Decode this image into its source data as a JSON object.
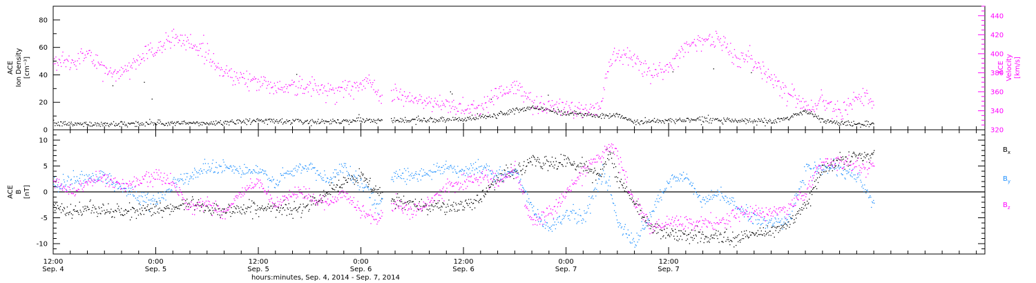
{
  "chart_data": [
    {
      "type": "scatter",
      "panel": "plasma",
      "ylabel_left_lines": [
        "ACE",
        "Ion Density",
        "[cm⁻³]"
      ],
      "ylabel_right_lines": [
        "ACE",
        "Velocity",
        "[km/s]"
      ],
      "y_left": {
        "lim": [
          0,
          90
        ],
        "ticks": [
          0,
          20,
          40,
          60,
          80
        ]
      },
      "y_right": {
        "lim": [
          320,
          450
        ],
        "ticks": [
          320,
          340,
          360,
          380,
          400,
          420,
          440
        ]
      },
      "data_gap_hours": [
        38.5,
        39.5
      ],
      "series": [
        {
          "axis": "left",
          "color": "#000000",
          "x_hours": [
            0,
            6,
            12,
            18,
            21,
            24,
            30,
            36,
            38,
            40,
            48,
            52,
            56,
            60,
            62,
            64,
            66,
            68,
            72,
            76,
            80,
            84,
            86,
            88,
            90,
            92,
            94,
            96
          ],
          "values": [
            4.5,
            4.5,
            5,
            5,
            6,
            7,
            6,
            7,
            8,
            7,
            8,
            11,
            17,
            12,
            12,
            10,
            11,
            6,
            7,
            8,
            7,
            6,
            9,
            14,
            7,
            5,
            4.5,
            4
          ]
        },
        {
          "axis": "right",
          "color": "#ff00ff",
          "x_hours": [
            0,
            2,
            4,
            6,
            8,
            10,
            11,
            12,
            14,
            16,
            18,
            19,
            20,
            22,
            24,
            26,
            28,
            30,
            32,
            34,
            36,
            37,
            38,
            40,
            42,
            44,
            46,
            48,
            50,
            52,
            54,
            56,
            58,
            60,
            62,
            64,
            65,
            66,
            68,
            70,
            72,
            74,
            76,
            78,
            80,
            82,
            84,
            86,
            88,
            90,
            92,
            94,
            96
          ],
          "values": [
            390,
            392,
            400,
            382,
            380,
            395,
            405,
            400,
            420,
            412,
            400,
            388,
            382,
            375,
            370,
            366,
            366,
            365,
            362,
            364,
            365,
            372,
            360,
            358,
            352,
            348,
            346,
            344,
            344,
            360,
            365,
            350,
            345,
            344,
            340,
            345,
            395,
            400,
            398,
            378,
            385,
            410,
            415,
            414,
            396,
            392,
            375,
            360,
            345,
            350,
            342,
            355,
            350
          ]
        }
      ]
    },
    {
      "type": "scatter",
      "panel": "magnetic-field",
      "ylabel_left_lines": [
        "ACE",
        "B",
        "[nT]"
      ],
      "ylim": [
        -12,
        12
      ],
      "yticks": [
        -10,
        -5,
        0,
        5,
        10
      ],
      "data_gap_hours": [
        38.5,
        39.5
      ],
      "legend": [
        {
          "main": "B",
          "sub": "x",
          "color": "#000000"
        },
        {
          "main": "B",
          "sub": "y",
          "color": "#1e90ff"
        },
        {
          "main": "B",
          "sub": "z",
          "color": "#ff00ff"
        }
      ],
      "series": [
        {
          "name": "Bx",
          "color": "#000000",
          "x_hours": [
            0,
            2,
            4,
            6,
            8,
            12,
            14,
            16,
            18,
            20,
            24,
            28,
            30,
            32,
            34,
            36,
            38,
            40,
            44,
            48,
            50,
            52,
            54,
            56,
            58,
            60,
            62,
            64,
            65,
            66,
            68,
            70,
            72,
            74,
            76,
            78,
            80,
            82,
            84,
            86,
            88,
            90,
            92,
            94,
            96
          ],
          "values": [
            -3,
            -4,
            -3,
            -3.5,
            -4,
            -3,
            -3.5,
            -2,
            -3,
            -3.5,
            -3,
            -3.5,
            -2,
            0,
            2,
            3,
            0,
            -2,
            -2.5,
            -3,
            -1,
            3,
            4,
            6,
            5.5,
            6,
            5,
            3,
            8,
            3,
            -2,
            -7,
            -8,
            -8.5,
            -8.5,
            -8.5,
            -9,
            -8,
            -7.5,
            -6,
            -3,
            5,
            6,
            7,
            7
          ]
        },
        {
          "name": "By",
          "color": "#1e90ff",
          "x_hours": [
            0,
            2,
            4,
            6,
            8,
            10,
            12,
            14,
            16,
            18,
            20,
            22,
            24,
            26,
            28,
            30,
            32,
            34,
            36,
            38,
            40,
            42,
            44,
            46,
            48,
            50,
            52,
            54,
            56,
            58,
            60,
            62,
            64,
            65,
            66,
            68,
            70,
            72,
            74,
            76,
            78,
            80,
            82,
            84,
            86,
            88,
            90,
            92,
            94,
            96
          ],
          "values": [
            1,
            2,
            3,
            3,
            1,
            -1,
            -2,
            2,
            3,
            5,
            5,
            4,
            4,
            2,
            4,
            5,
            2,
            5,
            2,
            -3,
            4,
            3,
            4,
            5,
            4,
            5,
            3,
            4,
            -3,
            -7,
            -4,
            -5,
            3,
            2,
            -6,
            -10,
            -4,
            2,
            3,
            -2,
            0,
            -3,
            -5,
            -6,
            -5,
            4,
            5,
            4,
            3,
            -2
          ]
        },
        {
          "name": "Bz",
          "color": "#ff00ff",
          "x_hours": [
            0,
            2,
            4,
            6,
            8,
            10,
            12,
            14,
            16,
            18,
            20,
            22,
            24,
            26,
            28,
            30,
            32,
            34,
            36,
            38,
            40,
            42,
            44,
            46,
            48,
            50,
            52,
            54,
            56,
            58,
            60,
            62,
            64,
            65,
            66,
            68,
            70,
            72,
            74,
            76,
            78,
            80,
            82,
            84,
            86,
            88,
            90,
            92,
            94,
            96
          ],
          "values": [
            2,
            0,
            2,
            3,
            1,
            2,
            3,
            2,
            -3,
            -2,
            -4,
            0,
            2,
            -3,
            0,
            -1,
            -2,
            0,
            -4,
            -5,
            -2,
            -4,
            -2,
            1,
            2,
            3,
            2,
            4,
            -6,
            -4,
            0,
            4,
            7,
            9,
            7,
            -2,
            -7,
            -6,
            -6,
            -6,
            -6,
            -4,
            -4,
            -4,
            -3,
            0,
            6,
            6,
            5,
            5
          ]
        }
      ]
    }
  ],
  "x_axis": {
    "range_hours": [
      0,
      109
    ],
    "major_ticks": [
      {
        "h": 0,
        "time": "12:00",
        "date": "Sep. 4"
      },
      {
        "h": 12,
        "time": "0:00",
        "date": "Sep. 5"
      },
      {
        "h": 24,
        "time": "12:00",
        "date": "Sep. 5"
      },
      {
        "h": 36,
        "time": "0:00",
        "date": "Sep. 6"
      },
      {
        "h": 48,
        "time": "12:00",
        "date": "Sep. 6"
      },
      {
        "h": 60,
        "time": "0:00",
        "date": "Sep. 7"
      },
      {
        "h": 72,
        "time": "12:00",
        "date": "Sep. 7"
      }
    ],
    "minor_tick_every_hours": 2,
    "xlabel": "hours:minutes, Sep.  4, 2014 - Sep.  7, 2014"
  }
}
